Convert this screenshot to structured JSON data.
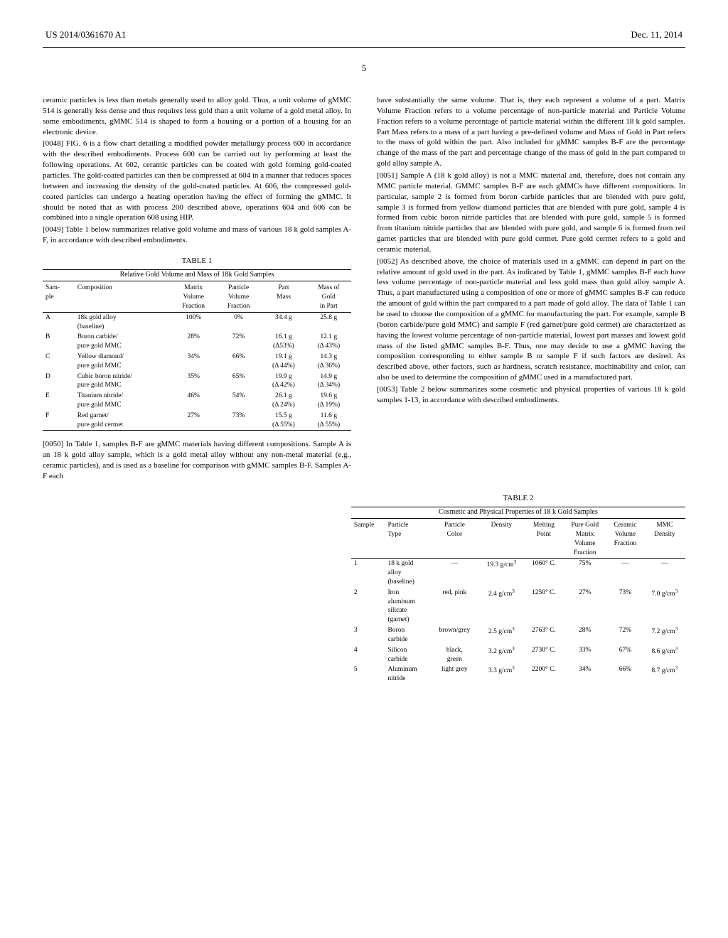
{
  "header": {
    "left": "US 2014/0361670 A1",
    "right": "Dec. 11, 2014"
  },
  "page_num": "5",
  "left_col": {
    "intro": "ceramic particles is less than metals generally used to alloy gold. Thus, a unit volume of gMMC 514 is generally less dense and thus requires less gold than a unit volume of a gold metal alloy. In some embodiments, gMMC 514 is shaped to form a housing or a portion of a housing for an electronic device.",
    "p0048": "[0048]   FIG. 6 is a flow chart detailing a modified powder metallurgy process 600 in accordance with the described embodiments. Process 600 can be carried out by performing at least the following operations. At 602, ceramic particles can be coated with gold forming gold-coated particles. The gold-coated particles can then be compressed at 604 in a manner that reduces spaces between and increasing the density of the gold-coated particles. At 606, the compressed gold-coated particles can undergo a heating operation having the effect of forming the gMMC. It should be noted that as with process 200 described above, operations 604 and 606 can be combined into a single operation 608 using HIP.",
    "p0049": "[0049]   Table 1 below summarizes relative gold volume and mass of various 18 k gold samples A-F, in accordance with described embodiments.",
    "t1_title": "TABLE 1",
    "t1_subtitle": "Relative Gold Volume and Mass of 18k Gold Samples",
    "t1_headers": [
      "Sam-\nple",
      "Composition",
      "Matrix\nVolume\nFraction",
      "Particle\nVolume\nFraction",
      "Part\nMass",
      "Mass of\nGold\nin Part"
    ],
    "t1_rows": [
      [
        "A",
        "18k gold alloy\n(baseline)",
        "100%",
        "0%",
        "34.4 g",
        "25.8 g"
      ],
      [
        "B",
        "Boron carbide/\npure gold MMC",
        "28%",
        "72%",
        "16.1 g\n(Δ53%)",
        "12.1 g\n(Δ 43%)"
      ],
      [
        "C",
        "Yellow diamond/\npure gold MMC",
        "34%",
        "66%",
        "19.1 g\n(Δ 44%)",
        "14.3 g\n(Δ 36%)"
      ],
      [
        "D",
        "Cubic boron nitride/\npure gold MMC",
        "35%",
        "65%",
        "19.9 g\n(Δ 42%)",
        "14.9 g\n(Δ 34%)"
      ],
      [
        "E",
        "Titanium nitride/\npure gold MMC",
        "46%",
        "54%",
        "26.1 g\n(Δ 24%)",
        "19.6 g\n(Δ 19%)"
      ],
      [
        "F",
        "Red garnet/\npure gold cermet",
        "27%",
        "73%",
        "15.5 g\n(Δ 55%)",
        "11.6 g\n(Δ 55%)"
      ]
    ],
    "p0050": "[0050]   In Table 1, samples B-F are gMMC materials having different compositions. Sample A is an 18 k gold alloy sample, which is a gold metal alloy without any non-metal material (e.g., ceramic particles), and is used as a baseline for comparison with gMMC samples B-F. Samples A-F each"
  },
  "right_col": {
    "p_cont": "have substantially the same volume. That is, they each represent a volume of a part. Matrix Volume Fraction refers to a volume percentage of non-particle material and Particle Volume Fraction refers to a volume percentage of particle material within the different 18 k gold samples. Part Mass refers to a mass of a part having a pre-defined volume and Mass of Gold in Part refers to the mass of gold within the part. Also included for gMMC samples B-F are the percentage change of the mass of the part and percentage change of the mass of gold in the part compared to gold alloy sample A.",
    "p0051": "[0051]   Sample A (18 k gold alloy) is not a MMC material and, therefore, does not contain any MMC particle material. GMMC samples B-F are each gMMCs have different compositions. In particular, sample 2 is formed from boron carbide particles that are blended with pure gold, sample 3 is formed from yellow diamond particles that are blended with pure gold, sample 4 is formed from cubic boron nitride particles that are blended with pure gold, sample 5 is formed from titanium nitride particles that are blended with pure gold, and sample 6 is formed from red garnet particles that are blended with pure gold cermet. Pure gold cermet refers to a gold and ceramic material.",
    "p0052": "[0052]   As described above, the choice of materials used in a gMMC can depend in part on the relative amount of gold used in the part. As indicated by Table 1, gMMC samples B-F each have less volume percentage of non-particle material and less gold mass than gold alloy sample A. Thus, a part manufactured using a composition of one or more of gMMC samples B-F can reduce the amount of gold within the part compared to a part made of gold alloy. The data of Table 1 can be used to choose the composition of a gMMC for manufacturing the part. For example, sample B (boron carbide/pure gold MMC) and sample F (red garnet/pure gold cermet) are characterized as having the lowest volume percentage of non-particle material, lowest part masses and lowest gold mass of the listed gMMC samples B-F. Thus, one may decide to use a gMMC having the composition corresponding to either sample B or sample F if such factors are desired. As described above, other factors, such as hardness, scratch resistance, machinability and color, can also be used to determine the composition of gMMC used in a manufactured part.",
    "p0053": "[0053]   Table 2 below summarizes some cosmetic and physical properties of various 18 k gold samples 1-13, in accordance with described embodiments."
  },
  "t2": {
    "title": "TABLE 2",
    "subtitle": "Cosmetic and Physical Properties of 18 k Gold Samples",
    "headers": [
      "Sample",
      "Particle\nType",
      "Particle\nColor",
      "Density",
      "Melting\nPoint",
      "Pure Gold\nMatrix\nVolume\nFraction",
      "Ceramic\nVolume\nFraction",
      "MMC\nDensity"
    ],
    "rows": [
      [
        "1",
        "18 k gold\nalloy\n(baseline)",
        "—",
        "19.3 g/cm³",
        "1060° C.",
        "75%",
        "—",
        "—"
      ],
      [
        "2",
        "Iron\naluminum\nsilicate\n(garnet)",
        "red, pink",
        "2.4 g/cm³",
        "1250° C.",
        "27%",
        "73%",
        "7.0 g/cm³"
      ],
      [
        "3",
        "Boron\ncarbide",
        "brown/grey",
        "2.5 g/cm³",
        "2763° C.",
        "28%",
        "72%",
        "7.2 g/cm³"
      ],
      [
        "4",
        "Silicon\ncarbide",
        "black,\ngreen",
        "3.2 g/cm³",
        "2730° C.",
        "33%",
        "67%",
        "8.6 g/cm³"
      ],
      [
        "5",
        "Aluminum\nnitride",
        "light grey",
        "3.3 g/cm³",
        "2200° C.",
        "34%",
        "66%",
        "8.7 g/cm³"
      ]
    ]
  }
}
